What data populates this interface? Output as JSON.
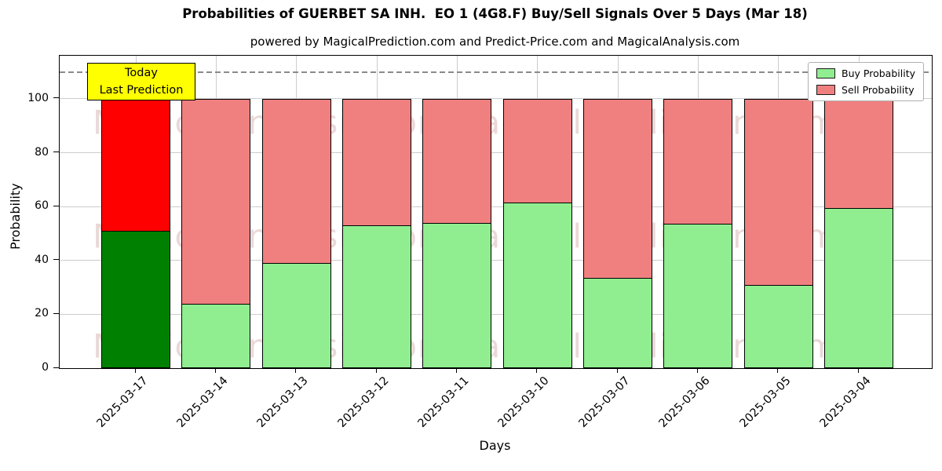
{
  "title": "Probabilities of GUERBET SA INH.  EO 1 (4G8.F) Buy/Sell Signals Over 5 Days (Mar 18)",
  "subtitle": "powered by MagicalPrediction.com and Predict-Price.com and MagicalAnalysis.com",
  "axes": {
    "x_label": "Days",
    "y_label": "Probability",
    "y_ticks": [
      0,
      20,
      40,
      60,
      80,
      100
    ]
  },
  "annotation": {
    "line1": "Today",
    "line2": "Last Prediction",
    "bg_color": "#ffff00"
  },
  "legend": [
    {
      "label": "Buy Probability",
      "color": "#90ee90"
    },
    {
      "label": "Sell Probability",
      "color": "#f08080"
    }
  ],
  "watermarks": {
    "left": "MagicalAnalysis.com",
    "right": "MagicalPrediction.com"
  },
  "colors": {
    "buy": "#90ee90",
    "sell": "#f08080",
    "buy_highlight": "#008000",
    "sell_highlight": "#ff0000",
    "bar_edge": "#000000",
    "grid": "#cccccc",
    "dashed_line": "#8a8a8a"
  },
  "chart_data": {
    "type": "bar",
    "stacked": true,
    "title": "Probabilities of GUERBET SA INH.  EO 1 (4G8.F) Buy/Sell Signals Over 5 Days (Mar 18)",
    "xlabel": "Days",
    "ylabel": "Probability",
    "categories": [
      "2025-03-17",
      "2025-03-14",
      "2025-03-13",
      "2025-03-12",
      "2025-03-11",
      "2025-03-10",
      "2025-03-07",
      "2025-03-06",
      "2025-03-05",
      "2025-03-04"
    ],
    "series": [
      {
        "name": "Buy Probability",
        "values": [
          51,
          24,
          39,
          53,
          54,
          61.5,
          33.5,
          53.5,
          31,
          59.5
        ]
      },
      {
        "name": "Sell Probability",
        "values": [
          49,
          76,
          61,
          47,
          46,
          38.5,
          66.5,
          46.5,
          69,
          40.5
        ]
      }
    ],
    "highlight_index": 0,
    "highlight_note": "Today / Last Prediction",
    "ylim": [
      0,
      116
    ],
    "dashed_line_y": 110,
    "grid": true,
    "legend_position": "upper right"
  }
}
